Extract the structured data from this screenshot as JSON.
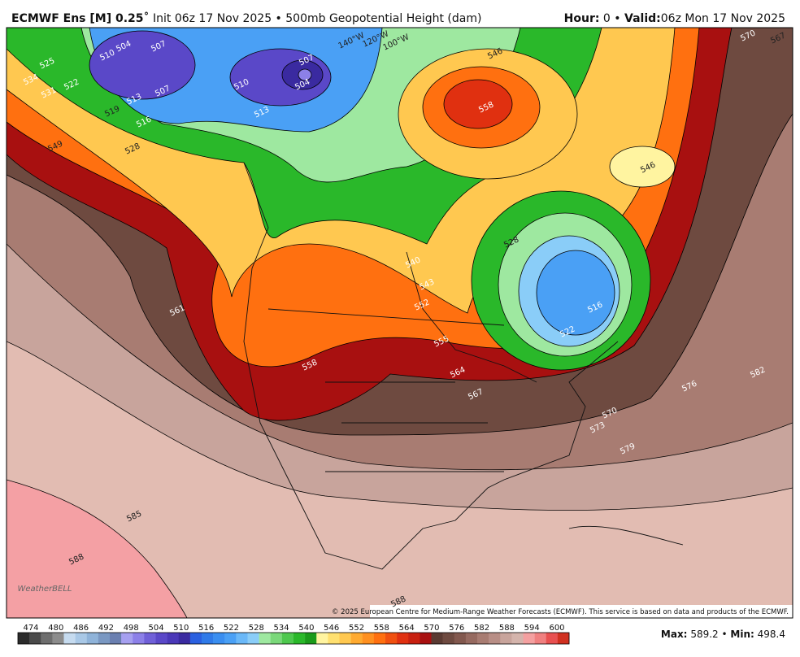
{
  "header": {
    "model": "ECMWF Ens [M] 0.25˚",
    "description": "Init 06z 17 Nov 2025 • 500mb Geopotential Height (dam)",
    "hour_label": "Hour:",
    "hour": "0",
    "separator": "•",
    "valid_label": "Valid:",
    "valid": "06z Mon 17 Nov 2025"
  },
  "map": {
    "contour_labels": [
      "504",
      "507",
      "510",
      "525",
      "534",
      "522",
      "531",
      "507",
      "513",
      "519",
      "516",
      "528",
      "549",
      "507",
      "504",
      "510",
      "513",
      "140°W",
      "120°W",
      "100°W",
      "546",
      "558",
      "570",
      "567",
      "546",
      "528",
      "516",
      "522",
      "561",
      "558",
      "540",
      "543",
      "552",
      "555",
      "564",
      "567",
      "570",
      "573",
      "579",
      "576",
      "582",
      "585",
      "588",
      "588"
    ],
    "logo": "WeatherBELL",
    "copyright": "© 2025 European Centre for Medium-Range Weather Forecasts (ECMWF). This service is based on data and products of the ECMWF."
  },
  "legend": {
    "ticks": [
      474,
      480,
      486,
      492,
      498,
      504,
      510,
      516,
      522,
      528,
      534,
      540,
      546,
      552,
      558,
      564,
      570,
      576,
      582,
      588,
      594,
      600
    ],
    "colors": [
      "#2b2b2b",
      "#4a4a4a",
      "#6e6e6e",
      "#8c8c8c",
      "#c6dbef",
      "#a9c8e6",
      "#8fb3d9",
      "#7a98c2",
      "#6a7fb0",
      "#a6a0f0",
      "#8c80e8",
      "#7060d8",
      "#5a48c8",
      "#4a38b8",
      "#3a2aa0",
      "#2a60e0",
      "#2f7ae8",
      "#3a8ef0",
      "#4aa0f5",
      "#6ab8f8",
      "#8acdf8",
      "#9ee8a0",
      "#7ad87a",
      "#4ec84e",
      "#2ab82a",
      "#1a9a1a",
      "#fff4a0",
      "#ffe070",
      "#ffc850",
      "#ffaa30",
      "#ff9020",
      "#ff7010",
      "#f05010",
      "#e03010",
      "#c82010",
      "#a81010",
      "#5a3a32",
      "#6e4a40",
      "#82584e",
      "#966a60",
      "#a87c72",
      "#b88e86",
      "#c8a49c",
      "#d4b4ac",
      "#f4a0a0",
      "#f08080",
      "#e85050",
      "#d03020"
    ]
  },
  "footer": {
    "max_label": "Max:",
    "max": "589.2",
    "separator": "•",
    "min_label": "Min:",
    "min": "498.4"
  }
}
